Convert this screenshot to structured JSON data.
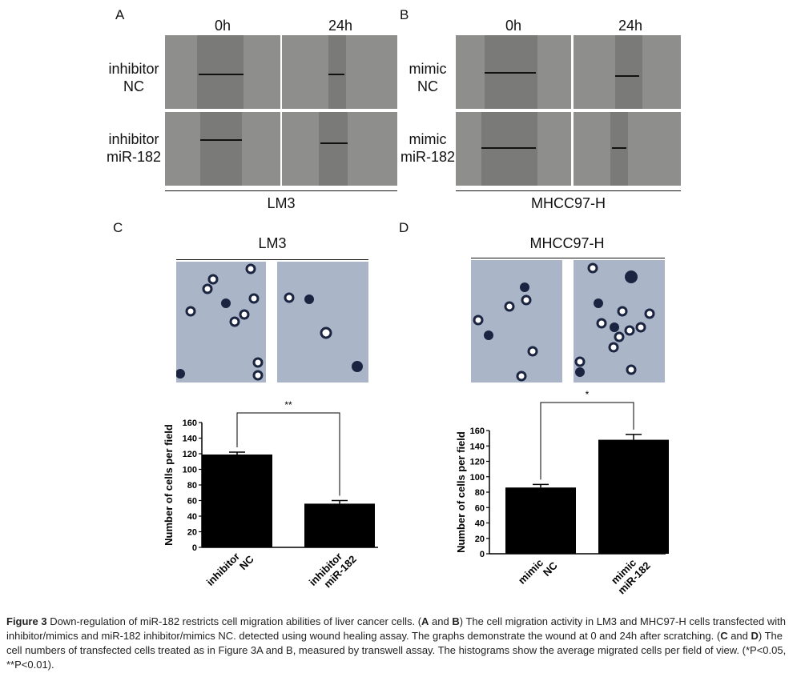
{
  "panelA": {
    "letter": "A",
    "col_headers": [
      "0h",
      "24h"
    ],
    "row_labels": [
      [
        "inhibitor",
        "NC"
      ],
      [
        "inhibitor",
        "miR-182"
      ]
    ],
    "cell_line": "LM3"
  },
  "panelB": {
    "letter": "B",
    "col_headers": [
      "0h",
      "24h"
    ],
    "row_labels": [
      [
        "mimic",
        "NC"
      ],
      [
        "mimic",
        "miR-182"
      ]
    ],
    "cell_line": "MHCC97-H"
  },
  "panelC": {
    "letter": "C",
    "cell_line": "LM3"
  },
  "panelD": {
    "letter": "D",
    "cell_line": "MHCC97-H"
  },
  "chart_data": [
    {
      "type": "bar",
      "categories": [
        [
          "inhibitor",
          "NC"
        ],
        [
          "inhibitor",
          "miR-182"
        ]
      ],
      "values": [
        119,
        56
      ],
      "errors": [
        3,
        4
      ],
      "ylabel": "Number of cells per field",
      "ylim": [
        0,
        160
      ],
      "yticks": [
        0,
        20,
        40,
        60,
        80,
        100,
        120,
        140,
        160
      ],
      "significance": "**"
    },
    {
      "type": "bar",
      "categories": [
        [
          "mimic",
          "NC"
        ],
        [
          "mimic",
          "miR-182"
        ]
      ],
      "values": [
        86,
        148
      ],
      "errors": [
        4,
        7
      ],
      "ylabel": "Number of cells per field",
      "ylim": [
        0,
        160
      ],
      "yticks": [
        0,
        20,
        40,
        60,
        80,
        100,
        120,
        140,
        160
      ],
      "significance": "*"
    }
  ],
  "caption": {
    "label": "Figure 3",
    "t1": " Down-regulation of miR-182 restricts cell migration abilities of liver cancer cells. (",
    "b1": "A",
    "t2": " and ",
    "b2": "B",
    "t3": ") The cell migration activity in LM3 and MHC97-H cells transfected with inhibitor/mimics and miR-182 inhibitor/mimics NC. detected using wound healing assay. The graphs demonstrate the wound at 0 and 24h after scratching. (",
    "b3": "C",
    "t4": " and ",
    "b4": "D",
    "t5": ") The cell numbers of transfected cells treated as in Figure 3A and B, measured by transwell assay. The histograms show the average migrated cells per field of view. (*P<0.05, **P<0.01)."
  }
}
